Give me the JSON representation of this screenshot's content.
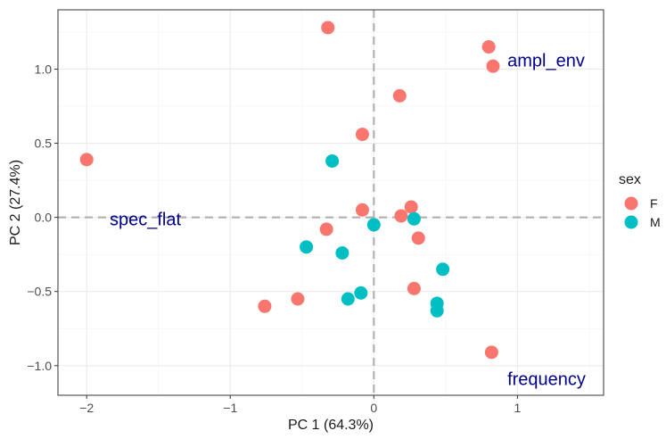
{
  "colors": {
    "F": "#F8766D",
    "M": "#00BFC4",
    "annotation": "#00008B"
  },
  "chart_data": {
    "type": "scatter",
    "xlabel": "PC 1 (64.3%)",
    "ylabel": "PC 2 (27.4%)",
    "xlim": [
      -2.2,
      1.6
    ],
    "ylim": [
      -1.2,
      1.4
    ],
    "x_ticks": [
      -2,
      -1,
      0,
      1
    ],
    "x_tick_labels": [
      "−2",
      "−1",
      "0",
      "1"
    ],
    "y_ticks": [
      -1.0,
      -0.5,
      0.0,
      0.5,
      1.0
    ],
    "y_tick_labels": [
      "−1.0",
      "−0.5",
      "0.0",
      "0.5",
      "1.0"
    ],
    "grid": true,
    "reference_lines": {
      "x": 0,
      "y": 0,
      "style": "dashed"
    },
    "legend": {
      "title": "sex",
      "placement": "right",
      "entries": [
        "F",
        "M"
      ]
    },
    "series": [
      {
        "name": "F",
        "points": [
          [
            -0.32,
            1.28
          ],
          [
            0.8,
            1.15
          ],
          [
            0.83,
            1.02
          ],
          [
            0.18,
            0.82
          ],
          [
            -0.08,
            0.56
          ],
          [
            -2.0,
            0.39
          ],
          [
            -0.08,
            0.05
          ],
          [
            0.26,
            0.07
          ],
          [
            0.19,
            0.01
          ],
          [
            -0.33,
            -0.08
          ],
          [
            0.31,
            -0.14
          ],
          [
            0.28,
            -0.48
          ],
          [
            -0.53,
            -0.55
          ],
          [
            -0.76,
            -0.6
          ],
          [
            0.82,
            -0.91
          ]
        ]
      },
      {
        "name": "M",
        "points": [
          [
            -0.29,
            0.38
          ],
          [
            0.28,
            -0.01
          ],
          [
            0.0,
            -0.05
          ],
          [
            -0.47,
            -0.2
          ],
          [
            -0.22,
            -0.24
          ],
          [
            0.48,
            -0.35
          ],
          [
            -0.09,
            -0.51
          ],
          [
            -0.18,
            -0.55
          ],
          [
            0.44,
            -0.58
          ],
          [
            0.44,
            -0.63
          ]
        ]
      }
    ],
    "annotations": [
      {
        "text": "ampl_env",
        "x": 0.93,
        "y": 1.06
      },
      {
        "text": "spec_flat",
        "x": -1.84,
        "y": -0.01
      },
      {
        "text": "frequency",
        "x": 0.93,
        "y": -1.09
      }
    ]
  }
}
